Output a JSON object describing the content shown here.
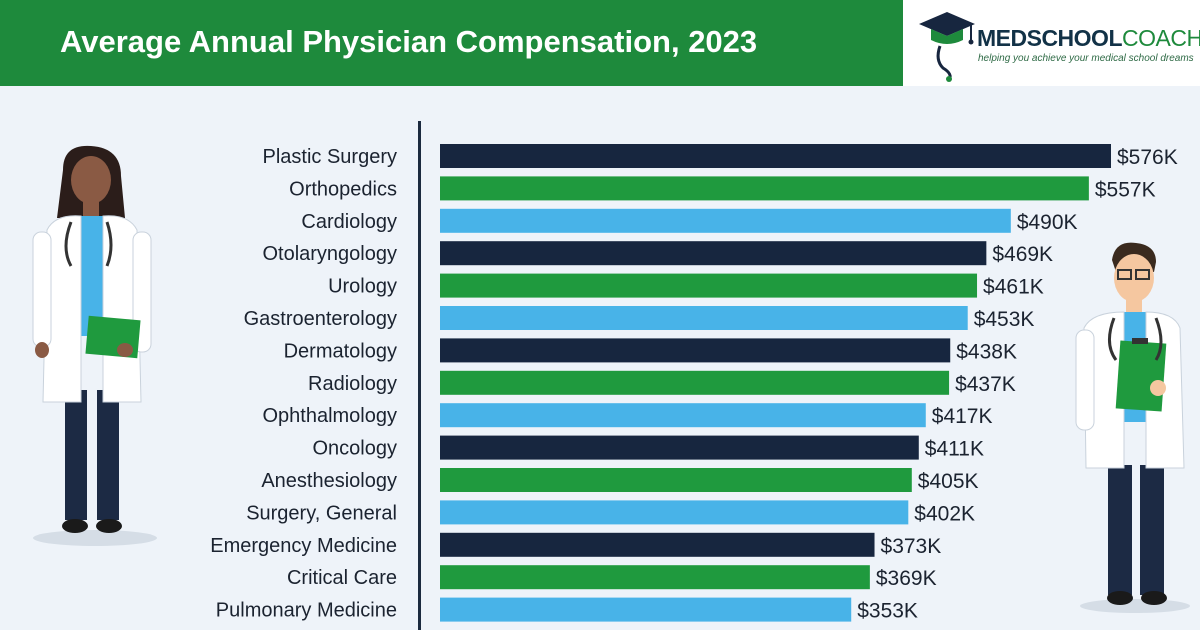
{
  "header": {
    "title": "Average Annual Physician Compensation, 2023"
  },
  "logo": {
    "name_bold": "MEDSCHOOL",
    "name_regular": "COACH",
    "tagline": "helping you achieve your medical school dreams"
  },
  "colors": {
    "header_green": "#1e8a3c",
    "navy": "#17263f",
    "green": "#1f9a3e",
    "light_blue": "#48b3e8",
    "background": "#eef3f9"
  },
  "chart_data": {
    "type": "bar",
    "orientation": "horizontal",
    "title": "Average Annual Physician Compensation, 2023",
    "xlabel": "",
    "ylabel": "",
    "unit": "USD thousands",
    "xlim": [
      0,
      576
    ],
    "grid": false,
    "legend": "none",
    "categories": [
      "Plastic Surgery",
      "Orthopedics",
      "Cardiology",
      "Otolaryngology",
      "Urology",
      "Gastroenterology",
      "Dermatology",
      "Radiology",
      "Ophthalmology",
      "Oncology",
      "Anesthesiology",
      "Surgery, General",
      "Emergency Medicine",
      "Critical Care",
      "Pulmonary Medicine"
    ],
    "values": [
      576,
      557,
      490,
      469,
      461,
      453,
      438,
      437,
      417,
      411,
      405,
      402,
      373,
      369,
      353
    ],
    "labels": [
      "$576K",
      "$557K",
      "$490K",
      "$469K",
      "$461K",
      "$453K",
      "$438K",
      "$437K",
      "$417K",
      "$411K",
      "$405K",
      "$402K",
      "$373K",
      "$369K",
      "$353K"
    ],
    "bar_colors": [
      "navy",
      "green",
      "light_blue"
    ]
  }
}
